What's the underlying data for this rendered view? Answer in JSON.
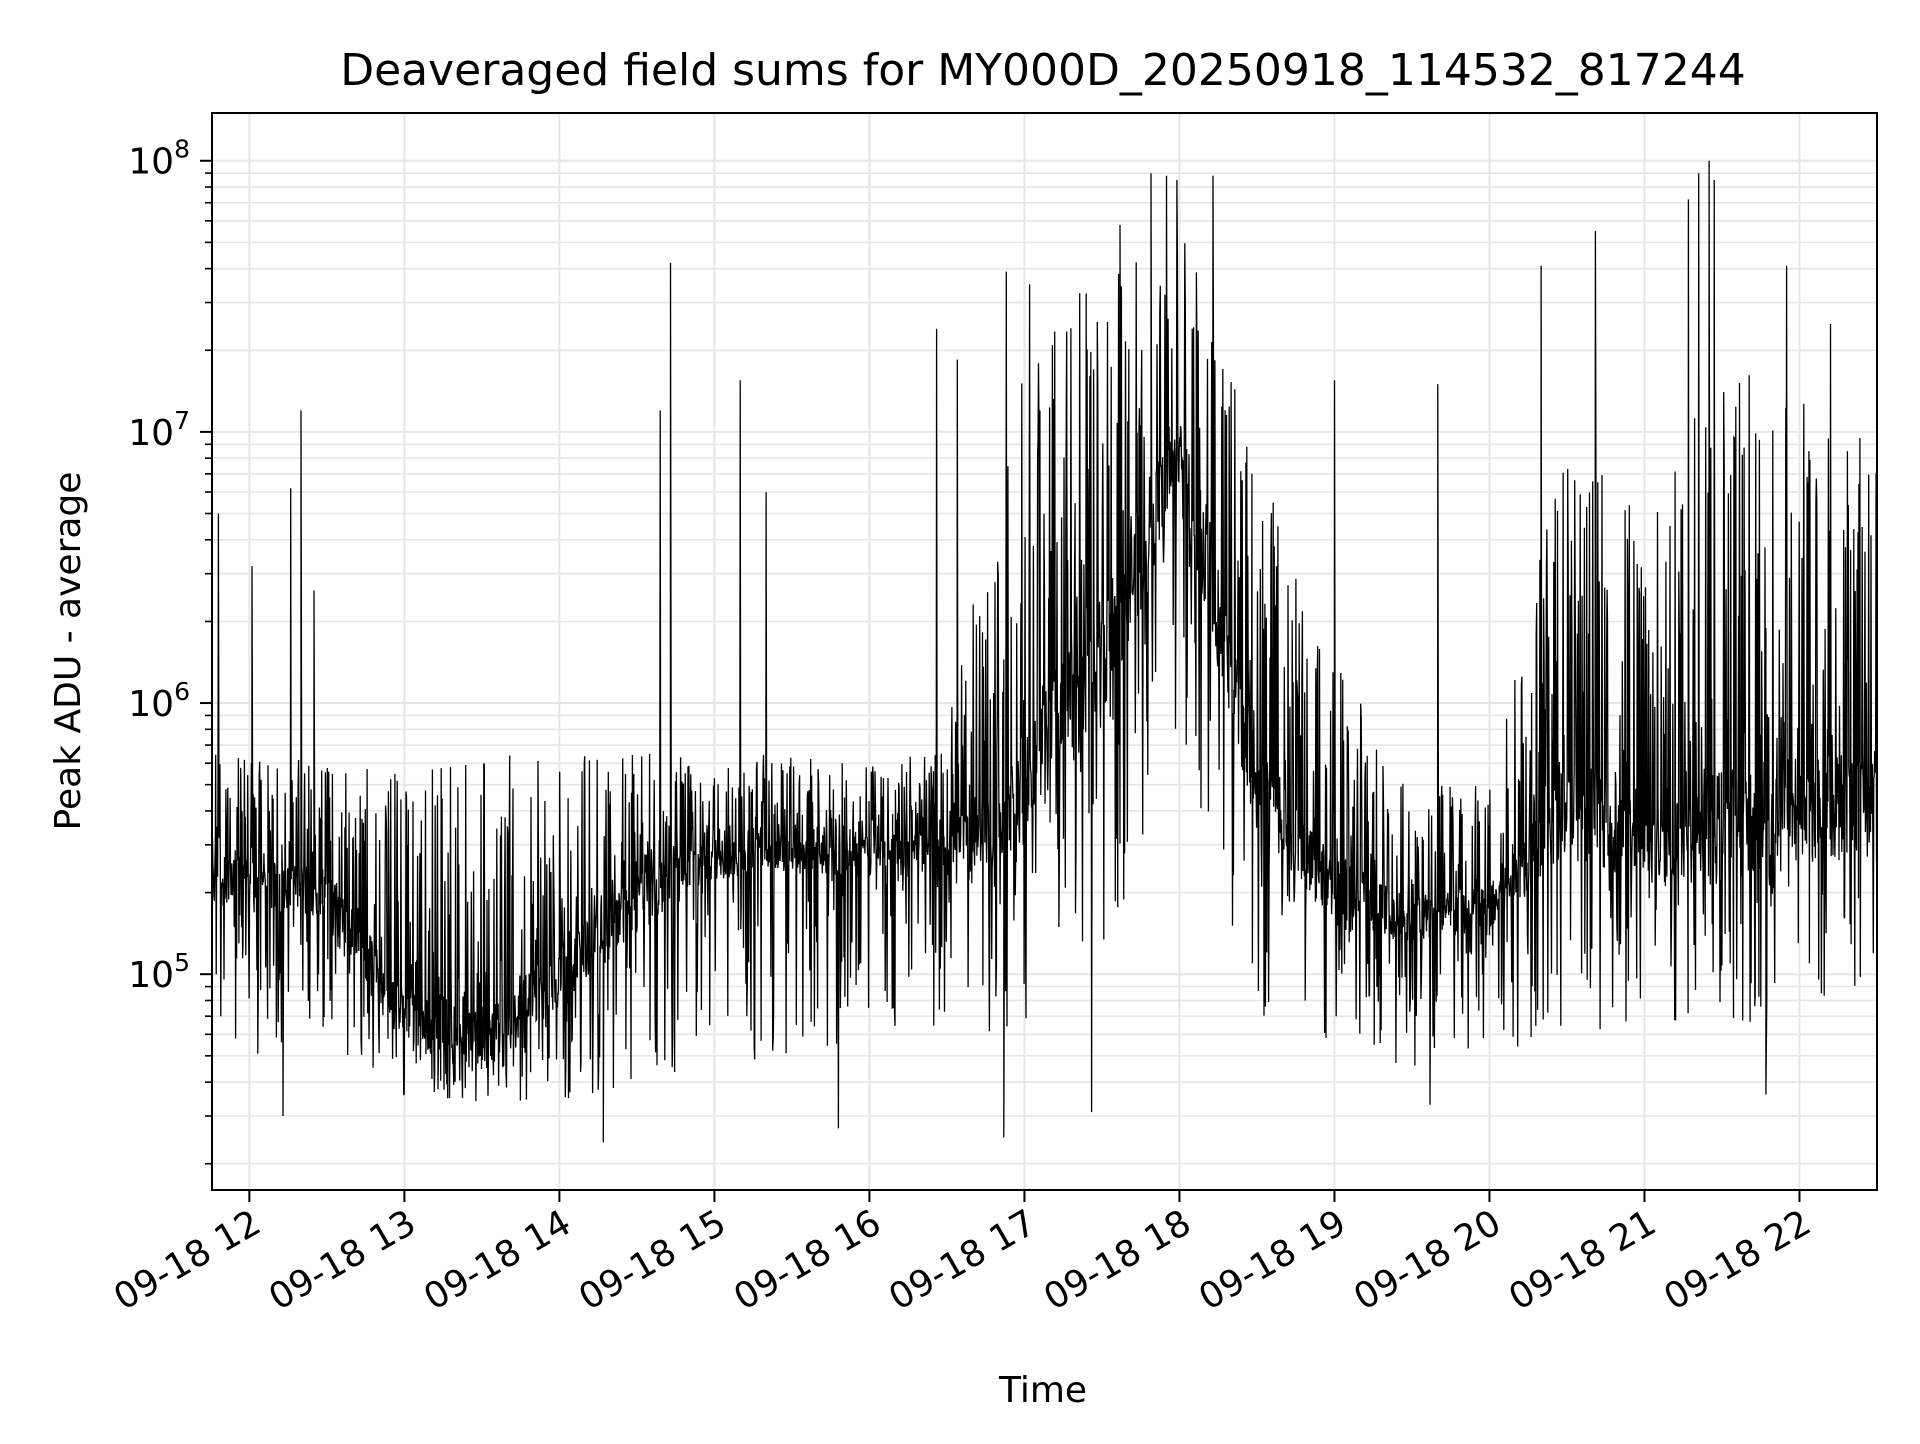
{
  "chart_data": {
    "type": "line",
    "title": "Deaveraged field sums for MY000D_20250918_114532_817244",
    "xlabel": "Time",
    "ylabel": "Peak ADU - average",
    "y_scale": "log",
    "ylim": [
      16000,
      150000000
    ],
    "xlim": [
      "2025-09-18 11:45:32",
      "2025-09-18 22:30:00"
    ],
    "grid": true,
    "line_color": "#000000",
    "x_ticks": [
      "09-18 12",
      "09-18 13",
      "09-18 14",
      "09-18 15",
      "09-18 16",
      "09-18 17",
      "09-18 18",
      "09-18 19",
      "09-18 20",
      "09-18 21",
      "09-18 22"
    ],
    "x_tick_values": [
      "2025-09-18 12:00",
      "2025-09-18 13:00",
      "2025-09-18 14:00",
      "2025-09-18 15:00",
      "2025-09-18 16:00",
      "2025-09-18 17:00",
      "2025-09-18 18:00",
      "2025-09-18 19:00",
      "2025-09-18 20:00",
      "2025-09-18 21:00",
      "2025-09-18 22:00"
    ],
    "y_ticks": [
      {
        "base": "10",
        "exp": "5",
        "value": 100000
      },
      {
        "base": "10",
        "exp": "6",
        "value": 1000000
      },
      {
        "base": "10",
        "exp": "7",
        "value": 10000000
      },
      {
        "base": "10",
        "exp": "8",
        "value": 100000000
      }
    ],
    "series_envelope": {
      "x": [
        "2025-09-18 11:45",
        "2025-09-18 12:00",
        "2025-09-18 12:30",
        "2025-09-18 13:00",
        "2025-09-18 13:30",
        "2025-09-18 14:00",
        "2025-09-18 14:30",
        "2025-09-18 15:00",
        "2025-09-18 15:30",
        "2025-09-18 16:00",
        "2025-09-18 16:30",
        "2025-09-18 17:00",
        "2025-09-18 17:30",
        "2025-09-18 18:00",
        "2025-09-18 18:30",
        "2025-09-18 19:00",
        "2025-09-18 19:30",
        "2025-09-18 20:00",
        "2025-09-18 20:30",
        "2025-09-18 21:00",
        "2025-09-18 21:30",
        "2025-09-18 22:00",
        "2025-09-18 22:30"
      ],
      "median": [
        230000,
        220000,
        200000,
        70000,
        55000,
        100000,
        180000,
        280000,
        290000,
        280000,
        260000,
        500000,
        1500000,
        8000000,
        500000,
        200000,
        160000,
        170000,
        450000,
        300000,
        350000,
        400000,
        450000
      ],
      "low": [
        60000,
        50000,
        55000,
        35000,
        33000,
        32000,
        40000,
        45000,
        50000,
        55000,
        50000,
        60000,
        120000,
        600000,
        70000,
        55000,
        45000,
        50000,
        60000,
        65000,
        70000,
        60000,
        100000
      ],
      "high": [
        650000,
        650000,
        600000,
        550000,
        650000,
        650000,
        700000,
        650000,
        650000,
        600000,
        800000,
        20000000,
        40000000,
        70000000,
        8000000,
        1500000,
        500000,
        600000,
        10000000,
        5000000,
        20000000,
        15000000,
        12000000
      ]
    },
    "spikes": [
      {
        "x": "2025-09-18 11:48",
        "y": 5000000
      },
      {
        "x": "2025-09-18 12:01",
        "y": 3200000
      },
      {
        "x": "2025-09-18 12:16",
        "y": 6200000
      },
      {
        "x": "2025-09-18 12:20",
        "y": 12000000
      },
      {
        "x": "2025-09-18 12:25",
        "y": 2600000
      },
      {
        "x": "2025-09-18 14:39",
        "y": 12000000
      },
      {
        "x": "2025-09-18 14:43",
        "y": 42000000
      },
      {
        "x": "2025-09-18 15:10",
        "y": 15500000
      },
      {
        "x": "2025-09-18 15:20",
        "y": 6000000
      },
      {
        "x": "2025-09-18 16:26",
        "y": 24000000
      },
      {
        "x": "2025-09-18 16:34",
        "y": 18500000
      },
      {
        "x": "2025-09-18 16:53",
        "y": 39000000
      },
      {
        "x": "2025-09-18 17:02",
        "y": 35000000
      },
      {
        "x": "2025-09-18 17:37",
        "y": 58000000
      },
      {
        "x": "2025-09-18 17:49",
        "y": 90000000
      },
      {
        "x": "2025-09-18 17:55",
        "y": 88000000
      },
      {
        "x": "2025-09-18 17:59",
        "y": 85000000
      },
      {
        "x": "2025-09-18 18:13",
        "y": 88000000
      },
      {
        "x": "2025-09-18 19:00",
        "y": 15500000
      },
      {
        "x": "2025-09-18 19:40",
        "y": 15000000
      },
      {
        "x": "2025-09-18 20:20",
        "y": 41000000
      },
      {
        "x": "2025-09-18 20:41",
        "y": 55000000
      },
      {
        "x": "2025-09-18 21:17",
        "y": 72000000
      },
      {
        "x": "2025-09-18 21:21",
        "y": 90000000
      },
      {
        "x": "2025-09-18 21:25",
        "y": 100000000
      },
      {
        "x": "2025-09-18 21:27",
        "y": 85000000
      },
      {
        "x": "2025-09-18 21:55",
        "y": 41000000
      },
      {
        "x": "2025-09-18 22:12",
        "y": 25000000
      }
    ],
    "dips": [
      {
        "x": "2025-09-18 12:13",
        "y": 30000
      },
      {
        "x": "2025-09-18 14:17",
        "y": 24000
      },
      {
        "x": "2025-09-18 15:48",
        "y": 27000
      },
      {
        "x": "2025-09-18 16:52",
        "y": 25000
      },
      {
        "x": "2025-09-18 17:26",
        "y": 31000
      },
      {
        "x": "2025-09-18 19:37",
        "y": 33000
      },
      {
        "x": "2025-09-18 21:47",
        "y": 36000
      }
    ]
  }
}
